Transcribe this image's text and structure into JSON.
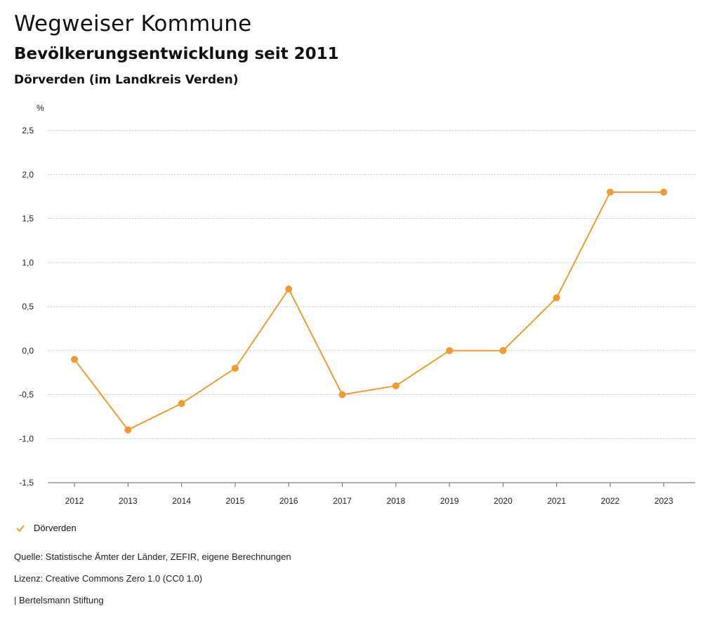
{
  "header": {
    "title": "Wegweiser Kommune",
    "subtitle": "Bevölkerungsentwicklung seit 2011",
    "region": "Dörverden (im Landkreis Verden)"
  },
  "chart_data": {
    "type": "line",
    "unit_label": "%",
    "x": [
      "2012",
      "2013",
      "2014",
      "2015",
      "2016",
      "2017",
      "2018",
      "2019",
      "2020",
      "2021",
      "2022",
      "2023"
    ],
    "series": [
      {
        "name": "Dörverden",
        "color": "#f09a35",
        "values": [
          -0.1,
          -0.9,
          -0.6,
          -0.2,
          0.7,
          -0.5,
          -0.4,
          0.0,
          0.0,
          0.6,
          1.8,
          1.8
        ]
      }
    ],
    "ylim": [
      -1.5,
      2.5
    ],
    "yticks": [
      -1.5,
      -1.0,
      -0.5,
      0.0,
      0.5,
      1.0,
      1.5,
      2.0,
      2.5
    ],
    "ytick_labels": [
      "-1,5",
      "-1,0",
      "-0,5",
      "0,0",
      "0,5",
      "1,0",
      "1,5",
      "2,0",
      "2,5"
    ],
    "grid": true,
    "legend_position": "bottom-left"
  },
  "legend": {
    "label": "Dörverden",
    "icon": "check-icon"
  },
  "footer": {
    "source": "Quelle: Statistische Ämter der Länder, ZEFIR, eigene Berechnungen",
    "license": "Lizenz: Creative Commons Zero 1.0 (CC0 1.0)",
    "publisher": "| Bertelsmann Stiftung"
  }
}
